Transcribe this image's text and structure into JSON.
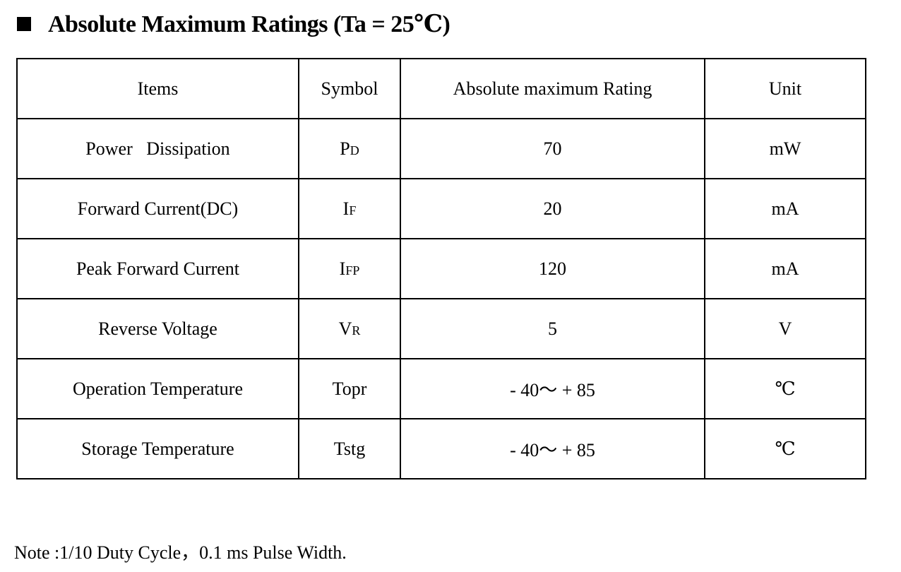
{
  "header": {
    "title": "Absolute Maximum Ratings (Ta = 25℃)"
  },
  "table": {
    "columns": [
      "Items",
      "Symbol",
      "Absolute maximum Rating",
      "Unit"
    ],
    "rows": [
      {
        "item": "Power   Dissipation",
        "symbol": {
          "main": "P",
          "sub": "D"
        },
        "rating": "70",
        "unit": "mW"
      },
      {
        "item": "Forward Current(DC)",
        "symbol": {
          "main": "I",
          "sub": "F"
        },
        "rating": "20",
        "unit": "mA"
      },
      {
        "item": "Peak Forward Current",
        "symbol": {
          "main": "I",
          "sub": "FP"
        },
        "rating": "120",
        "unit": "mA"
      },
      {
        "item": "Reverse Voltage",
        "symbol": {
          "main": "V",
          "sub": "R"
        },
        "rating": "5",
        "unit": "V"
      },
      {
        "item": "Operation Temperature",
        "symbol": {
          "main": "Topr"
        },
        "rating": "- 40～ + 85",
        "unit": "℃"
      },
      {
        "item": "Storage Temperature",
        "symbol": {
          "main": "Tstg"
        },
        "rating": "- 40～ + 85",
        "unit": "℃"
      }
    ]
  },
  "note": "Note :1/10 Duty Cycle，0.1 ms Pulse Width."
}
